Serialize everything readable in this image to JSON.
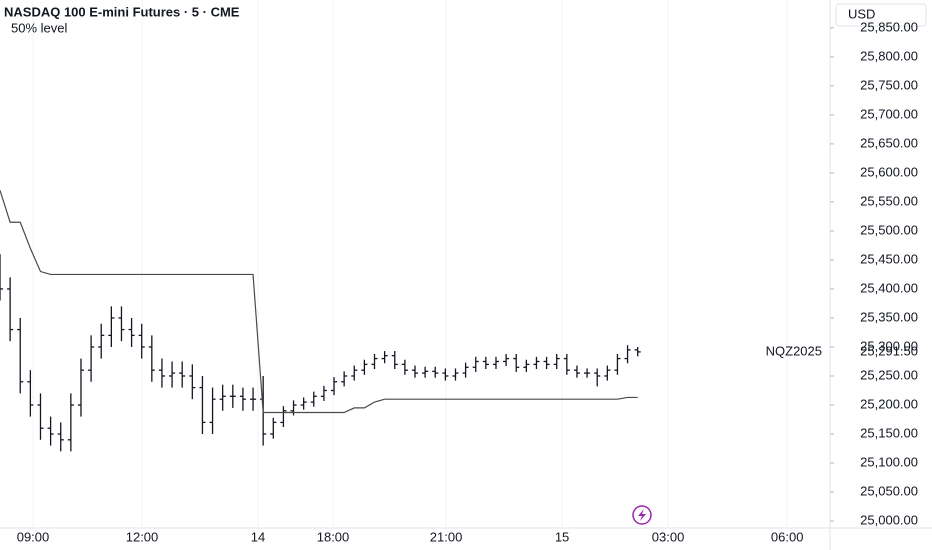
{
  "chart_data": {
    "type": "ohlc",
    "title": "NASDAQ 100 E-mini Futures · 5 · CME",
    "currency": "USD",
    "symbol": "NQZ2025",
    "last_price": {
      "value": 25291.5,
      "label": "25,291.50"
    },
    "color": "#131722",
    "grid": true,
    "ylim": [
      24988,
      25898
    ],
    "xlim": [
      0,
      82
    ],
    "yticks": [
      {
        "value": 25000,
        "label": "25,000.00"
      },
      {
        "value": 25050,
        "label": "25,050.00"
      },
      {
        "value": 25100,
        "label": "25,100.00"
      },
      {
        "value": 25150,
        "label": "25,150.00"
      },
      {
        "value": 25200,
        "label": "25,200.00"
      },
      {
        "value": 25250,
        "label": "25,250.00"
      },
      {
        "value": 25300,
        "label": "25,300.00"
      },
      {
        "value": 25350,
        "label": "25,350.00"
      },
      {
        "value": 25400,
        "label": "25,400.00"
      },
      {
        "value": 25450,
        "label": "25,450.00"
      },
      {
        "value": 25500,
        "label": "25,500.00"
      },
      {
        "value": 25550,
        "label": "25,550.00"
      },
      {
        "value": 25600,
        "label": "25,600.00"
      },
      {
        "value": 25650,
        "label": "25,650.00"
      },
      {
        "value": 25700,
        "label": "25,700.00"
      },
      {
        "value": 25750,
        "label": "25,750.00"
      },
      {
        "value": 25800,
        "label": "25,800.00"
      },
      {
        "value": 25850,
        "label": "25,850.00"
      }
    ],
    "xticks": [
      {
        "value": 3.26,
        "label": "09:00"
      },
      {
        "value": 14.03,
        "label": "12:00"
      },
      {
        "value": 25.49,
        "label": "14"
      },
      {
        "value": 32.9,
        "label": "18:00"
      },
      {
        "value": 44.07,
        "label": "21:00"
      },
      {
        "value": 55.53,
        "label": "15"
      },
      {
        "value": 66.0,
        "label": "03:00"
      },
      {
        "value": 77.77,
        "label": "06:00"
      }
    ],
    "ohlc": {
      "open": [
        25440,
        25400,
        25330,
        25240,
        25200,
        25160,
        25150,
        25140,
        25200,
        25260,
        25300,
        25320,
        25350,
        25330,
        25320,
        25300,
        25260,
        25250,
        25255,
        25250,
        25230,
        25170,
        25210,
        25215,
        25215,
        25210,
        25210,
        25150,
        25170,
        25190,
        25200,
        25205,
        25215,
        25225,
        25240,
        25250,
        25260,
        25270,
        25280,
        25285,
        25270,
        25260,
        25255,
        25258,
        25255,
        25250,
        25255,
        25265,
        25275,
        25270,
        25275,
        25280,
        25265,
        25270,
        25275,
        25270,
        25280,
        25260,
        25255,
        25255,
        25250,
        25260,
        25280,
        25295
      ],
      "high": [
        25460,
        25420,
        25350,
        25260,
        25220,
        25180,
        25170,
        25220,
        25280,
        25320,
        25340,
        25370,
        25370,
        25350,
        25340,
        25320,
        25280,
        25275,
        25275,
        25270,
        25250,
        25230,
        25235,
        25235,
        25230,
        25230,
        25250,
        25178,
        25198,
        25208,
        25213,
        25223,
        25233,
        25248,
        25258,
        25268,
        25278,
        25288,
        25293,
        25293,
        25278,
        25268,
        25266,
        25266,
        25263,
        25263,
        25273,
        25283,
        25283,
        25283,
        25288,
        25288,
        25278,
        25283,
        25283,
        25288,
        25288,
        25268,
        25263,
        25263,
        25268,
        25288,
        25303,
        25300
      ],
      "low": [
        25380,
        25310,
        25220,
        25180,
        25140,
        25130,
        25120,
        25120,
        25180,
        25240,
        25280,
        25300,
        25310,
        25300,
        25280,
        25240,
        25230,
        25230,
        25230,
        25210,
        25150,
        25150,
        25190,
        25195,
        25190,
        25190,
        25130,
        25142,
        25162,
        25182,
        25192,
        25197,
        25207,
        25217,
        25232,
        25242,
        25252,
        25262,
        25272,
        25262,
        25252,
        25247,
        25247,
        25247,
        25242,
        25242,
        25247,
        25257,
        25262,
        25262,
        25267,
        25257,
        25257,
        25262,
        25262,
        25262,
        25252,
        25247,
        25247,
        25232,
        25242,
        25252,
        25272,
        25284
      ],
      "close": [
        25400,
        25330,
        25240,
        25200,
        25160,
        25150,
        25140,
        25200,
        25260,
        25300,
        25320,
        25350,
        25330,
        25320,
        25300,
        25260,
        25250,
        25255,
        25250,
        25230,
        25170,
        25210,
        25215,
        25215,
        25210,
        25210,
        25150,
        25170,
        25190,
        25200,
        25205,
        25215,
        25225,
        25240,
        25250,
        25260,
        25270,
        25280,
        25285,
        25270,
        25260,
        25255,
        25258,
        25255,
        25250,
        25255,
        25265,
        25275,
        25270,
        25275,
        25280,
        25265,
        25270,
        25275,
        25270,
        25280,
        25260,
        25255,
        25255,
        25250,
        25260,
        25280,
        25295,
        25291.5
      ]
    },
    "series": [
      {
        "name": "50% level",
        "color": "#4a4a4a",
        "values": [
          25570,
          25515,
          25515,
          25470,
          25430,
          25425,
          25425,
          25425,
          25425,
          25425,
          25425,
          25425,
          25425,
          25425,
          25425,
          25425,
          25425,
          25425,
          25425,
          25425,
          25425,
          25425,
          25425,
          25425,
          25425,
          25425,
          25187,
          25187,
          25187,
          25187,
          25187,
          25187,
          25187,
          25187,
          25187,
          25195,
          25195,
          25205,
          25210,
          25210,
          25210,
          25210,
          25210,
          25210,
          25210,
          25210,
          25210,
          25210,
          25210,
          25210,
          25210,
          25210,
          25210,
          25210,
          25210,
          25210,
          25210,
          25210,
          25210,
          25210,
          25210,
          25210,
          25213,
          25213
        ]
      }
    ]
  }
}
